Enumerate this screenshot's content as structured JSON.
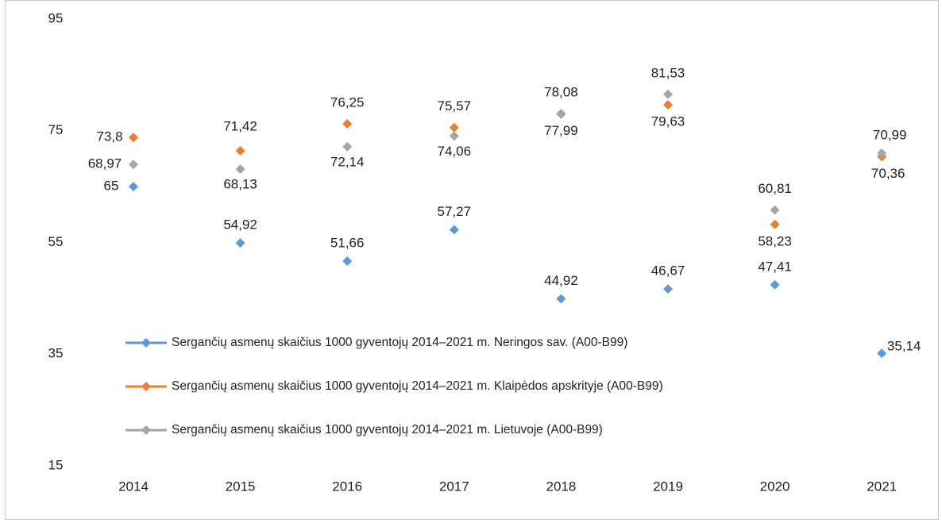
{
  "chart_data": {
    "type": "line",
    "categories": [
      "2014",
      "2015",
      "2016",
      "2017",
      "2018",
      "2019",
      "2020",
      "2021"
    ],
    "series": [
      {
        "name": "Sergančių asmenų skaičius 1000 gyventojų 2014–2021 m. Neringos sav. (A00-B99)",
        "color": "#5b9bd5",
        "values": [
          65,
          54.92,
          51.66,
          57.27,
          44.92,
          46.67,
          47.41,
          35.14
        ],
        "value_labels": [
          "65",
          "54,92",
          "51,66",
          "57,27",
          "44,92",
          "46,67",
          "47,41",
          "35,14"
        ]
      },
      {
        "name": "Sergančių asmenų skaičius 1000 gyventojų 2014–2021 m. Klaipėdos apskrityje (A00-B99)",
        "color": "#ed7d31",
        "values": [
          73.8,
          71.42,
          76.25,
          75.57,
          77.99,
          79.63,
          58.23,
          70.36
        ],
        "value_labels": [
          "73,8",
          "71,42",
          "76,25",
          "75,57",
          "77,99",
          "79,63",
          "58,23",
          "70,36"
        ]
      },
      {
        "name": "Sergančių asmenų skaičius 1000 gyventojų 2014–2021 m. Lietuvoje (A00-B99)",
        "color": "#a5a5a5",
        "values": [
          68.97,
          68.13,
          72.14,
          74.06,
          78.08,
          81.53,
          60.81,
          70.99
        ],
        "value_labels": [
          "68,97",
          "68,13",
          "72,14",
          "74,06",
          "78,08",
          "81,53",
          "60,81",
          "70,99"
        ]
      }
    ],
    "ylim": [
      15,
      95
    ],
    "yticks": [
      15,
      35,
      55,
      75,
      95
    ],
    "grid": false
  }
}
